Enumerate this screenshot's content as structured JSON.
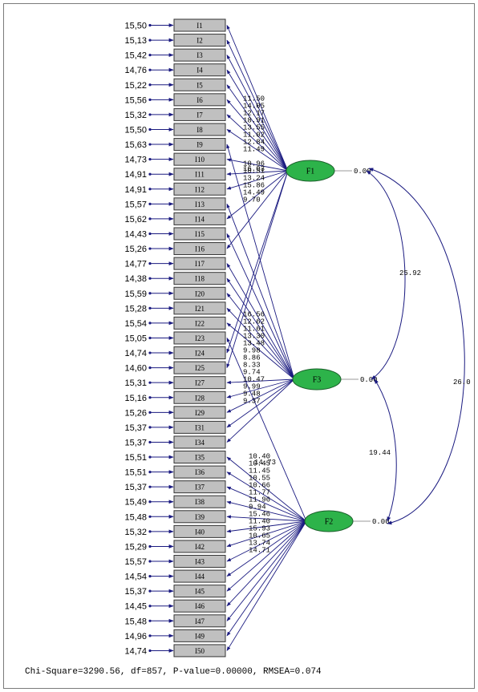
{
  "diagram": {
    "items": [
      {
        "id": "I1",
        "error": "15,50"
      },
      {
        "id": "I2",
        "error": "15,13"
      },
      {
        "id": "I3",
        "error": "15,42"
      },
      {
        "id": "I4",
        "error": "14,76"
      },
      {
        "id": "I5",
        "error": "15,22"
      },
      {
        "id": "I6",
        "error": "15,56"
      },
      {
        "id": "I7",
        "error": "15,32"
      },
      {
        "id": "I8",
        "error": "15,50"
      },
      {
        "id": "I9",
        "error": "15,63"
      },
      {
        "id": "I10",
        "error": "14,73"
      },
      {
        "id": "I11",
        "error": "14,91"
      },
      {
        "id": "I12",
        "error": "14,91"
      },
      {
        "id": "I13",
        "error": "15,57"
      },
      {
        "id": "I14",
        "error": "15,62"
      },
      {
        "id": "I15",
        "error": "14,43"
      },
      {
        "id": "I16",
        "error": "15,26"
      },
      {
        "id": "I17",
        "error": "14,77"
      },
      {
        "id": "I18",
        "error": "14,38"
      },
      {
        "id": "I20",
        "error": "15,59"
      },
      {
        "id": "I21",
        "error": "15,28"
      },
      {
        "id": "I22",
        "error": "15,54"
      },
      {
        "id": "I23",
        "error": "15,05"
      },
      {
        "id": "I24",
        "error": "14,74"
      },
      {
        "id": "I25",
        "error": "14,60"
      },
      {
        "id": "I27",
        "error": "15,31"
      },
      {
        "id": "I28",
        "error": "15,16"
      },
      {
        "id": "I29",
        "error": "15,26"
      },
      {
        "id": "I31",
        "error": "15,37"
      },
      {
        "id": "I34",
        "error": "15,37"
      },
      {
        "id": "I35",
        "error": "15,51"
      },
      {
        "id": "I36",
        "error": "15,51"
      },
      {
        "id": "I37",
        "error": "15,37"
      },
      {
        "id": "I38",
        "error": "15,49"
      },
      {
        "id": "I39",
        "error": "15,48"
      },
      {
        "id": "I40",
        "error": "15,32"
      },
      {
        "id": "I42",
        "error": "15,29"
      },
      {
        "id": "I43",
        "error": "15,57"
      },
      {
        "id": "I44",
        "error": "14,54"
      },
      {
        "id": "I45",
        "error": "15,37"
      },
      {
        "id": "I46",
        "error": "14,45"
      },
      {
        "id": "I47",
        "error": "15,48"
      },
      {
        "id": "I49",
        "error": "14,96"
      },
      {
        "id": "I50",
        "error": "14,74"
      }
    ],
    "factors": [
      {
        "id": "F1",
        "variance": "0.00",
        "color": "#2db34a"
      },
      {
        "id": "F3",
        "variance": "0.00",
        "color": "#2db34a"
      },
      {
        "id": "F2",
        "variance": "0.00",
        "color": "#2db34a"
      }
    ],
    "loadings": [
      {
        "factor": "F1",
        "item": "I1",
        "value": "11.50"
      },
      {
        "factor": "F1",
        "item": "I2",
        "value": "14.05"
      },
      {
        "factor": "F1",
        "item": "I3",
        "value": "12.17"
      },
      {
        "factor": "F1",
        "item": "I4",
        "value": "18.91"
      },
      {
        "factor": "F1",
        "item": "I5",
        "value": "13.55"
      },
      {
        "factor": "F1",
        "item": "I6",
        "value": "11.02"
      },
      {
        "factor": "F1",
        "item": "I7",
        "value": "12.84"
      },
      {
        "factor": "F1",
        "item": "I8",
        "value": "11.49"
      },
      {
        "factor": "F1",
        "item": "I10",
        "value": "16.03"
      },
      {
        "factor": "F1",
        "item": "I11",
        "value": "10.96"
      },
      {
        "factor": "F1",
        "item": "I12",
        "value": "10.51"
      },
      {
        "factor": "F1",
        "item": "I14",
        "value": "13.24"
      },
      {
        "factor": "F1",
        "item": "I16",
        "value": "15.86"
      },
      {
        "factor": "F1",
        "item": "I24",
        "value": "14.49"
      },
      {
        "factor": "F1",
        "item": "I25",
        "value": "9.70"
      },
      {
        "factor": "F3",
        "item": "I9",
        "value": "16.56"
      },
      {
        "factor": "F3",
        "item": "I13",
        "value": "12.62"
      },
      {
        "factor": "F3",
        "item": "I15",
        "value": "11.61"
      },
      {
        "factor": "F3",
        "item": "I17",
        "value": "13.30"
      },
      {
        "factor": "F3",
        "item": "I18",
        "value": "13.48"
      },
      {
        "factor": "F3",
        "item": "I20",
        "value": "9.98"
      },
      {
        "factor": "F3",
        "item": "I21",
        "value": "8.86"
      },
      {
        "factor": "F3",
        "item": "I22",
        "value": "8.33"
      },
      {
        "factor": "F3",
        "item": "I27",
        "value": "9.74"
      },
      {
        "factor": "F3",
        "item": "I28",
        "value": "10.47"
      },
      {
        "factor": "F3",
        "item": "I29",
        "value": "9.99"
      },
      {
        "factor": "F3",
        "item": "I31",
        "value": "9.48"
      },
      {
        "factor": "F3",
        "item": "I34",
        "value": "9.37"
      },
      {
        "factor": "F2",
        "item": "I23",
        "value": "14.73"
      },
      {
        "factor": "F2",
        "item": "I35",
        "value": "10.40"
      },
      {
        "factor": "F2",
        "item": "I36",
        "value": "10.45"
      },
      {
        "factor": "F2",
        "item": "I37",
        "value": "11.45"
      },
      {
        "factor": "F2",
        "item": "I38",
        "value": "10.55"
      },
      {
        "factor": "F2",
        "item": "I39",
        "value": "10.66"
      },
      {
        "factor": "F2",
        "item": "I40",
        "value": "11.77"
      },
      {
        "factor": "F2",
        "item": "I42",
        "value": "11.96"
      },
      {
        "factor": "F2",
        "item": "I43",
        "value": "9.94"
      },
      {
        "factor": "F2",
        "item": "I44",
        "value": "15.46"
      },
      {
        "factor": "F2",
        "item": "I45",
        "value": "11.40"
      },
      {
        "factor": "F2",
        "item": "I46",
        "value": "15.93"
      },
      {
        "factor": "F2",
        "item": "I47",
        "value": "10.65"
      },
      {
        "factor": "F2",
        "item": "I49",
        "value": "13.74"
      },
      {
        "factor": "F2",
        "item": "I50",
        "value": "14.71"
      }
    ],
    "covariances": [
      {
        "a": "F1",
        "b": "F3",
        "value": "25.92"
      },
      {
        "a": "F3",
        "b": "F2",
        "value": "19.44"
      },
      {
        "a": "F1",
        "b": "F2",
        "value": "26.0"
      }
    ],
    "colors": {
      "line": "#1a1a80",
      "box_fill": "#c0c0c0",
      "factor_fill": "#2db34a"
    }
  },
  "fit_statistics": "Chi-Square=3290.56, df=857, P-value=0.00000, RMSEA=0.074"
}
